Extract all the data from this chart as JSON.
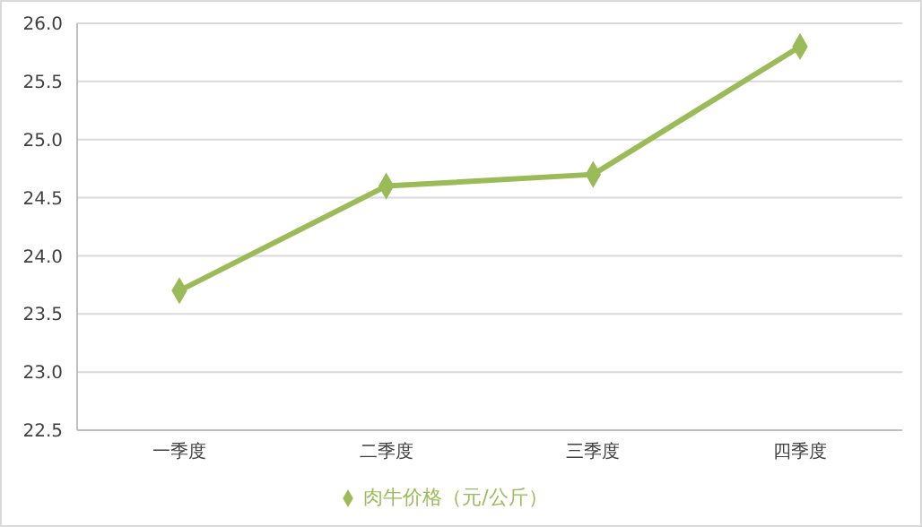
{
  "chart_data": {
    "type": "line",
    "categories": [
      "一季度",
      "二季度",
      "三季度",
      "四季度"
    ],
    "series": [
      {
        "name": "肉牛价格（元/公斤）",
        "color": "#9bbb59",
        "values": [
          23.7,
          24.6,
          24.7,
          25.8
        ]
      }
    ],
    "ylim": [
      22.5,
      26
    ],
    "yticks": [
      22.5,
      {
        "value": 23,
        "label": "23.0"
      },
      23.5,
      {
        "value": 24,
        "label": "24.0"
      },
      24.5,
      {
        "value": 25,
        "label": "25.0"
      },
      25.5,
      {
        "value": 26,
        "label": "26.0"
      }
    ],
    "grid": "y",
    "legend": "bottom",
    "marker": "diamond",
    "line_style": "solid"
  }
}
